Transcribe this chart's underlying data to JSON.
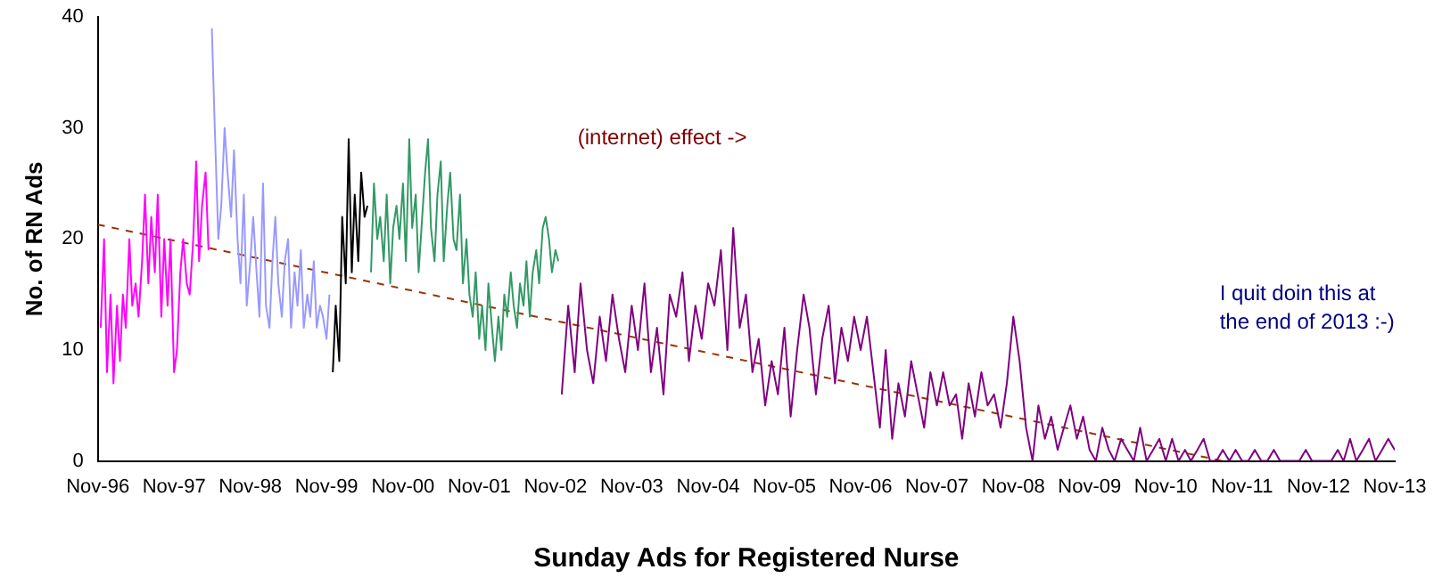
{
  "chart_data": {
    "type": "line",
    "xlabel": "Sunday Ads for Registered Nurse",
    "ylabel": "No. of RN Ads",
    "marker": "none",
    "line_style": "solid",
    "grid": false,
    "legend": false,
    "xlim": [
      "1996-11",
      "2013-11"
    ],
    "ylim": [
      0,
      40
    ],
    "yticks": [
      0,
      10,
      20,
      30,
      40
    ],
    "xticks": [
      {
        "value": "1996-11",
        "label": "Nov-96"
      },
      {
        "value": "1997-11",
        "label": "Nov-97"
      },
      {
        "value": "1998-11",
        "label": "Nov-98"
      },
      {
        "value": "1999-11",
        "label": "Nov-99"
      },
      {
        "value": "2000-11",
        "label": "Nov-00"
      },
      {
        "value": "2001-11",
        "label": "Nov-01"
      },
      {
        "value": "2002-11",
        "label": "Nov-02"
      },
      {
        "value": "2003-11",
        "label": "Nov-03"
      },
      {
        "value": "2004-11",
        "label": "Nov-04"
      },
      {
        "value": "2005-11",
        "label": "Nov-05"
      },
      {
        "value": "2006-11",
        "label": "Nov-06"
      },
      {
        "value": "2007-11",
        "label": "Nov-07"
      },
      {
        "value": "2008-11",
        "label": "Nov-08"
      },
      {
        "value": "2009-11",
        "label": "Nov-09"
      },
      {
        "value": "2010-11",
        "label": "Nov-10"
      },
      {
        "value": "2011-11",
        "label": "Nov-11"
      },
      {
        "value": "2012-11",
        "label": "Nov-12"
      },
      {
        "value": "2013-11",
        "label": "Nov-13"
      }
    ],
    "annotations": [
      "(internet) effect ->",
      "I quit doin this at the end of 2013 :-)"
    ],
    "series": [
      {
        "color": "#ff00ff",
        "x": [
          "1996-11-15",
          "1996-12-01",
          "1996-12-15",
          "1997-01-01",
          "1997-01-15",
          "1997-02-01",
          "1997-02-15",
          "1997-03-01",
          "1997-03-15",
          "1997-04-01",
          "1997-04-15",
          "1997-05-01",
          "1997-05-15",
          "1997-06-01",
          "1997-06-15",
          "1997-07-01",
          "1997-07-15",
          "1997-08-01",
          "1997-08-15",
          "1997-09-01",
          "1997-09-15",
          "1997-10-01",
          "1997-10-15",
          "1997-11-01",
          "1997-11-15",
          "1997-12-01",
          "1997-12-15",
          "1998-01-01",
          "1998-01-15",
          "1998-02-01",
          "1998-02-15",
          "1998-03-01",
          "1998-03-15",
          "1998-04-01",
          "1998-04-15"
        ],
        "values": [
          12,
          20,
          8,
          15,
          7,
          14,
          9,
          15,
          12,
          20,
          14,
          16,
          13,
          18,
          24,
          16,
          22,
          17,
          24,
          13,
          20,
          14,
          20,
          8,
          10,
          17,
          20,
          16,
          15,
          20,
          27,
          18,
          23,
          26,
          19
        ]
      },
      {
        "color": "#9999ff",
        "x": [
          "1998-05-01",
          "1998-05-15",
          "1998-06-01",
          "1998-06-15",
          "1998-07-01",
          "1998-07-15",
          "1998-08-01",
          "1998-08-15",
          "1998-09-01",
          "1998-09-15",
          "1998-10-01",
          "1998-10-15",
          "1998-11-01",
          "1998-11-15",
          "1998-12-01",
          "1998-12-15",
          "1999-01-01",
          "1999-01-15",
          "1999-02-01",
          "1999-02-15",
          "1999-03-01",
          "1999-03-15",
          "1999-04-01",
          "1999-04-15",
          "1999-05-01",
          "1999-05-15",
          "1999-06-01",
          "1999-06-15",
          "1999-07-01",
          "1999-07-15",
          "1999-08-01",
          "1999-08-15",
          "1999-09-01",
          "1999-09-15",
          "1999-10-01",
          "1999-10-15",
          "1999-11-01",
          "1999-11-15"
        ],
        "values": [
          39,
          30,
          20,
          23,
          30,
          26,
          22,
          28,
          20,
          16,
          24,
          14,
          18,
          22,
          17,
          13,
          25,
          14,
          12,
          18,
          22,
          16,
          13,
          18,
          20,
          12,
          17,
          14,
          19,
          12,
          15,
          13,
          18,
          12,
          14,
          13,
          11,
          15
        ]
      },
      {
        "color": "#000000",
        "x": [
          "1999-12-01",
          "1999-12-15",
          "2000-01-01",
          "2000-01-15",
          "2000-02-01",
          "2000-02-15",
          "2000-03-01",
          "2000-03-15",
          "2000-04-01",
          "2000-04-15",
          "2000-05-01",
          "2000-05-15"
        ],
        "values": [
          8,
          14,
          9,
          22,
          16,
          29,
          17,
          24,
          18,
          26,
          22,
          23
        ]
      },
      {
        "color": "#339966",
        "x": [
          "2000-06-01",
          "2000-06-15",
          "2000-07-01",
          "2000-07-15",
          "2000-08-01",
          "2000-08-15",
          "2000-09-01",
          "2000-09-15",
          "2000-10-01",
          "2000-10-15",
          "2000-11-01",
          "2000-11-15",
          "2000-12-01",
          "2000-12-15",
          "2001-01-01",
          "2001-01-15",
          "2001-02-01",
          "2001-02-15",
          "2001-03-01",
          "2001-03-15",
          "2001-04-01",
          "2001-04-15",
          "2001-05-01",
          "2001-05-15",
          "2001-06-01",
          "2001-06-15",
          "2001-07-01",
          "2001-07-15",
          "2001-08-01",
          "2001-08-15",
          "2001-09-01",
          "2001-09-15",
          "2001-10-01",
          "2001-10-15",
          "2001-11-01",
          "2001-11-15",
          "2001-12-01",
          "2001-12-15",
          "2002-01-01",
          "2002-01-15",
          "2002-02-01",
          "2002-02-15",
          "2002-03-01",
          "2002-03-15",
          "2002-04-01",
          "2002-04-15",
          "2002-05-01",
          "2002-05-15",
          "2002-06-01",
          "2002-06-15",
          "2002-07-01",
          "2002-07-15",
          "2002-08-01",
          "2002-08-15",
          "2002-09-01",
          "2002-09-15",
          "2002-10-01",
          "2002-10-15",
          "2002-11-01",
          "2002-11-15"
        ],
        "values": [
          17,
          25,
          20,
          22,
          18,
          24,
          16,
          21,
          23,
          20,
          25,
          18,
          29,
          21,
          24,
          17,
          22,
          26,
          29,
          21,
          18,
          24,
          27,
          18,
          23,
          26,
          20,
          19,
          24,
          16,
          20,
          15,
          13,
          17,
          11,
          14,
          10,
          16,
          12,
          9,
          13,
          10,
          15,
          13,
          17,
          14,
          12,
          16,
          14,
          18,
          13,
          17,
          19,
          16,
          21,
          22,
          20,
          17,
          19,
          18
        ]
      },
      {
        "color": "#800080",
        "x": [
          "2002-12",
          "2003-01",
          "2003-02",
          "2003-03",
          "2003-04",
          "2003-05",
          "2003-06",
          "2003-07",
          "2003-08",
          "2003-09",
          "2003-10",
          "2003-11",
          "2003-12",
          "2004-01",
          "2004-02",
          "2004-03",
          "2004-04",
          "2004-05",
          "2004-06",
          "2004-07",
          "2004-08",
          "2004-09",
          "2004-10",
          "2004-11",
          "2004-12",
          "2005-01",
          "2005-02",
          "2005-03",
          "2005-04",
          "2005-05",
          "2005-06",
          "2005-07",
          "2005-08",
          "2005-09",
          "2005-10",
          "2005-11",
          "2005-12",
          "2006-01",
          "2006-02",
          "2006-03",
          "2006-04",
          "2006-05",
          "2006-06",
          "2006-07",
          "2006-08",
          "2006-09",
          "2006-10",
          "2006-11",
          "2006-12",
          "2007-01",
          "2007-02",
          "2007-03",
          "2007-04",
          "2007-05",
          "2007-06",
          "2007-07",
          "2007-08",
          "2007-09",
          "2007-10",
          "2007-11",
          "2007-12",
          "2008-01",
          "2008-02",
          "2008-03",
          "2008-04",
          "2008-05",
          "2008-06",
          "2008-07",
          "2008-08",
          "2008-09",
          "2008-10",
          "2008-11",
          "2008-12",
          "2009-01",
          "2009-02",
          "2009-03",
          "2009-04",
          "2009-05",
          "2009-06",
          "2009-07",
          "2009-08",
          "2009-09",
          "2009-10",
          "2009-11",
          "2009-12",
          "2010-01",
          "2010-02",
          "2010-03",
          "2010-04",
          "2010-05",
          "2010-06",
          "2010-07",
          "2010-08",
          "2010-09",
          "2010-10",
          "2010-11",
          "2010-12",
          "2011-01",
          "2011-02",
          "2011-03",
          "2011-04",
          "2011-05",
          "2011-06",
          "2011-07",
          "2011-08",
          "2011-09",
          "2011-10",
          "2011-11",
          "2011-12",
          "2012-01",
          "2012-02",
          "2012-03",
          "2012-04",
          "2012-05",
          "2012-06",
          "2012-07",
          "2012-08",
          "2012-09",
          "2012-10",
          "2012-11",
          "2012-12",
          "2013-01",
          "2013-02",
          "2013-03",
          "2013-04",
          "2013-05",
          "2013-06",
          "2013-07",
          "2013-08",
          "2013-09",
          "2013-10",
          "2013-11"
        ],
        "values": [
          6,
          14,
          8,
          16,
          10,
          7,
          13,
          9,
          15,
          11,
          8,
          14,
          10,
          16,
          8,
          12,
          6,
          15,
          13,
          17,
          9,
          14,
          11,
          16,
          14,
          19,
          10,
          21,
          12,
          15,
          8,
          11,
          5,
          9,
          6,
          12,
          4,
          10,
          15,
          12,
          6,
          11,
          14,
          7,
          12,
          9,
          13,
          10,
          13,
          8,
          3,
          10,
          2,
          7,
          4,
          9,
          6,
          3,
          8,
          5,
          8,
          5,
          6,
          2,
          7,
          4,
          8,
          5,
          6,
          3,
          7,
          13,
          9,
          3,
          0,
          5,
          2,
          4,
          1,
          3,
          5,
          2,
          4,
          1,
          0,
          3,
          1,
          0,
          2,
          1,
          0,
          3,
          0,
          1,
          2,
          0,
          2,
          0,
          1,
          0,
          1,
          2,
          0,
          0,
          1,
          0,
          1,
          0,
          0,
          1,
          0,
          0,
          1,
          0,
          0,
          0,
          0,
          1,
          0,
          0,
          0,
          0,
          1,
          0,
          2,
          0,
          1,
          2,
          0,
          1,
          2,
          1
        ]
      },
      {
        "type": "line",
        "color": "#993300",
        "line_style": "dashed",
        "x": [
          "1996-11",
          "2011-08"
        ],
        "values": [
          21.3,
          0
        ]
      }
    ]
  }
}
